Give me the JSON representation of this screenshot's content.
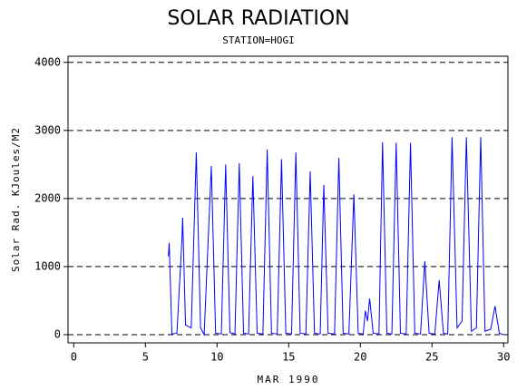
{
  "chart_data": {
    "type": "line",
    "title": "SOLAR RADIATION",
    "subtitle": "STATION=HOGI",
    "x_label": "MAR 1990",
    "y_label": "Solar Rad. KJoules/M2",
    "xlim": [
      -0.4,
      30.3
    ],
    "ylim": [
      -120,
      4090
    ],
    "xticks": [
      0,
      5,
      10,
      15,
      20,
      25,
      30
    ],
    "yticks": [
      0,
      1000,
      2000,
      3000,
      4000
    ],
    "grid": true,
    "grid_style": "dashed",
    "series": [
      {
        "name": "Solar Rad.",
        "color": "#0000ff",
        "x": [
          6.6,
          6.66,
          6.85,
          7.2,
          7.55,
          7.6,
          7.8,
          8.2,
          8.55,
          8.85,
          9.1,
          9.6,
          9.9,
          10.3,
          10.6,
          10.9,
          11.25,
          11.55,
          11.85,
          12.2,
          12.5,
          12.8,
          13.2,
          13.5,
          13.8,
          14.2,
          14.5,
          14.8,
          15.2,
          15.5,
          15.8,
          16.2,
          16.5,
          16.8,
          17.2,
          17.45,
          17.75,
          18.2,
          18.5,
          18.8,
          19.2,
          19.55,
          19.85,
          20.2,
          20.35,
          20.5,
          20.65,
          20.9,
          21.3,
          21.55,
          21.85,
          22.2,
          22.5,
          22.8,
          23.2,
          23.5,
          23.8,
          24.2,
          24.5,
          24.8,
          25.2,
          25.5,
          25.8,
          26.1,
          26.4,
          26.75,
          27.1,
          27.4,
          27.75,
          28.1,
          28.4,
          28.7,
          29.1,
          29.4,
          29.7,
          30
        ],
        "values": [
          1150,
          1350,
          10,
          20,
          1400,
          1720,
          140,
          100,
          2680,
          100,
          0,
          2480,
          20,
          10,
          2500,
          30,
          10,
          2520,
          20,
          10,
          2330,
          20,
          10,
          2720,
          20,
          10,
          2580,
          20,
          10,
          2680,
          20,
          10,
          2400,
          20,
          10,
          2200,
          20,
          10,
          2600,
          20,
          10,
          2060,
          20,
          10,
          350,
          200,
          530,
          20,
          10,
          2830,
          20,
          10,
          2820,
          20,
          10,
          2820,
          20,
          10,
          1080,
          20,
          10,
          800,
          20,
          10,
          2900,
          100,
          200,
          2900,
          50,
          100,
          2900,
          50,
          80,
          420,
          20,
          0
        ]
      }
    ]
  }
}
